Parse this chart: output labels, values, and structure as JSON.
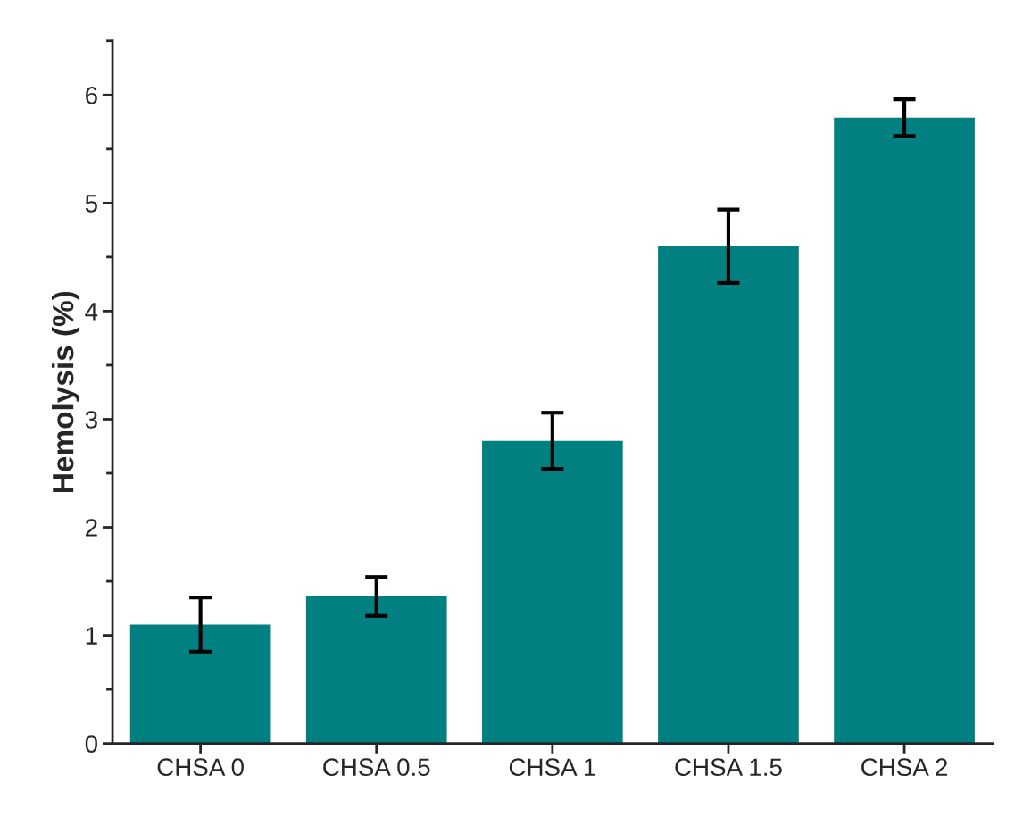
{
  "chart_data": {
    "type": "bar",
    "ylabel": "Hemolysis (%)",
    "categories": [
      "CHSA 0",
      "CHSA 0.5",
      "CHSA 1",
      "CHSA 1.5",
      "CHSA 2"
    ],
    "values": [
      1.1,
      1.36,
      2.8,
      4.6,
      5.79
    ],
    "errors": [
      0.25,
      0.18,
      0.26,
      0.34,
      0.17
    ],
    "color": "#008080",
    "ylim": [
      0,
      6.5
    ],
    "yticks": [
      0,
      1,
      2,
      3,
      4,
      5,
      6
    ],
    "grid": false
  }
}
